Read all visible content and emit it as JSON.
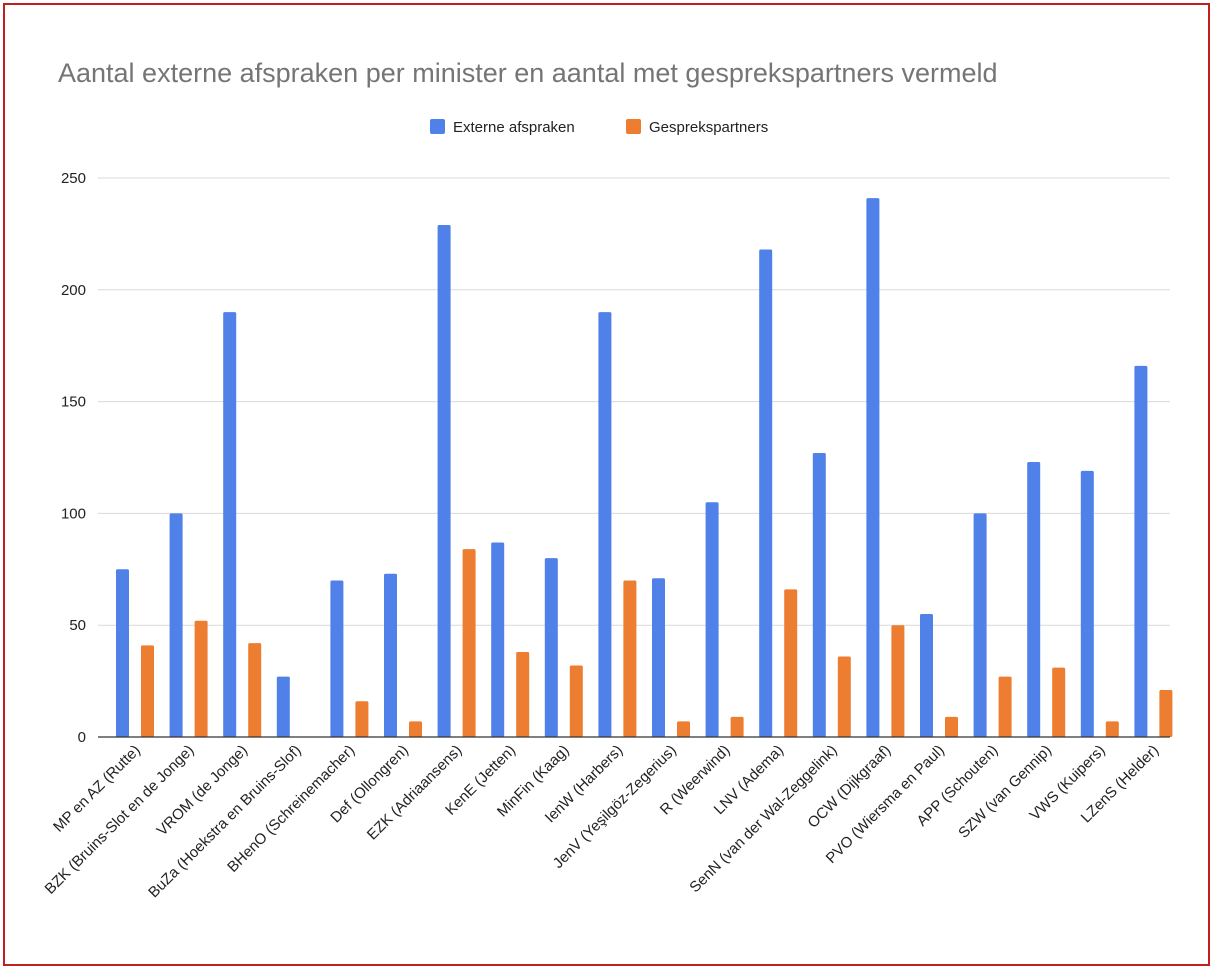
{
  "chart_data": {
    "type": "bar",
    "title": "Aantal externe afspraken per minister en aantal met gesprekspartners vermeld",
    "xlabel": "",
    "ylabel": "",
    "ylim": [
      0,
      250
    ],
    "yticks": [
      0,
      50,
      100,
      150,
      200,
      250
    ],
    "grid": true,
    "legend_position": "top",
    "categories": [
      "MP en AZ (Rutte)",
      "BZK (Bruins-Slot en de Jonge)",
      "VROM (de Jonge)",
      "BuZa (Hoekstra en Bruins-Slof)",
      "BHenO (Schreinemacher)",
      "Def (Ollongren)",
      "EZK (Adriaansens)",
      "KenE (Jetten)",
      "MinFin (Kaag)",
      "IenW (Harbers)",
      "JenV (Yeşilgöz-Zegerius)",
      "R (Weerwind)",
      "LNV (Adema)",
      "SenN (van der Wal-Zeggelink)",
      "OCW (Dijkgraaf)",
      "PVO (Wiersma en Paul)",
      "APP (Schouten)",
      "SZW (van Gennip)",
      "VWS (Kuipers)",
      "LZenS (Helder)"
    ],
    "series": [
      {
        "name": "Externe afspraken",
        "color": "#4f81e8",
        "values": [
          75,
          100,
          190,
          27,
          70,
          73,
          229,
          87,
          80,
          190,
          71,
          105,
          218,
          127,
          241,
          55,
          100,
          123,
          119,
          166
        ]
      },
      {
        "name": "Gesprekspartners",
        "color": "#ed7d31",
        "values": [
          41,
          52,
          42,
          0,
          16,
          7,
          84,
          38,
          32,
          70,
          7,
          9,
          66,
          36,
          50,
          9,
          27,
          31,
          7,
          21
        ]
      }
    ]
  }
}
